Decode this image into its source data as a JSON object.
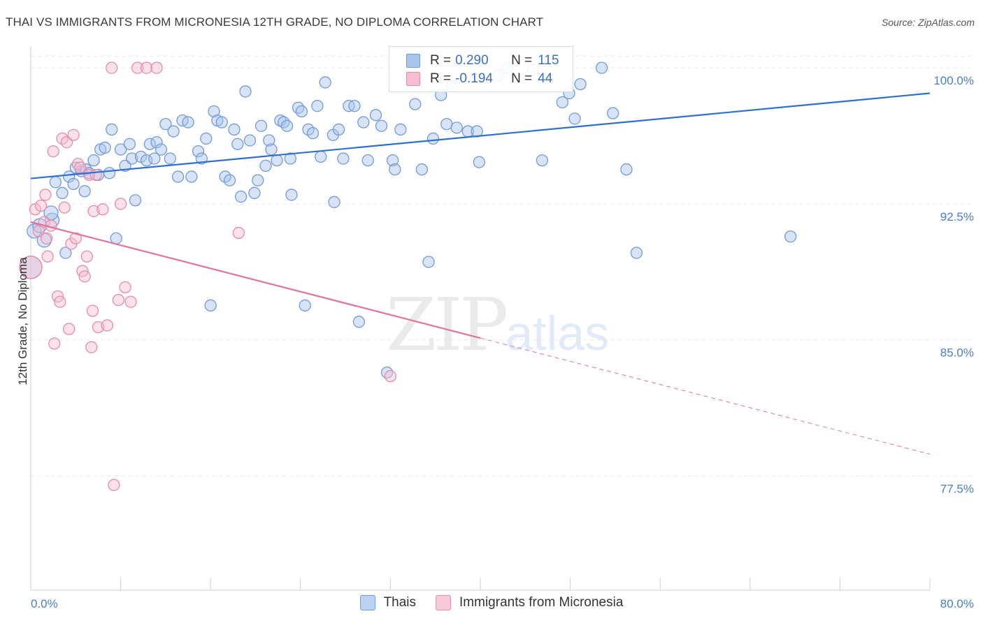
{
  "title": "THAI VS IMMIGRANTS FROM MICRONESIA 12TH GRADE, NO DIPLOMA CORRELATION CHART",
  "source": "Source: ZipAtlas.com",
  "watermark": {
    "zip": "ZIP",
    "atlas": "atlas"
  },
  "colors": {
    "blue_fill": "#a9c4ec",
    "blue_stroke": "#6f9bdb",
    "blue_line": "#2f6fce",
    "pink_fill": "#f6bccf",
    "pink_stroke": "#e68bab",
    "pink_line": "#e0739c",
    "tick_text": "#4a7ec8",
    "grid": "#e6e6e6"
  },
  "legend": {
    "rows": [
      {
        "r_label": "R =",
        "r_value": "0.290",
        "n_label": "N =",
        "n_value": "115"
      },
      {
        "r_label": "R =",
        "r_value": "-0.194",
        "n_label": "N =",
        "n_value": "44"
      }
    ]
  },
  "bottom_legend": [
    "Thais",
    "Immigrants from Micronesia"
  ],
  "chart_data": {
    "type": "scatter",
    "title": "THAI VS IMMIGRANTS FROM MICRONESIA 12TH GRADE, NO DIPLOMA CORRELATION CHART",
    "xlabel": "",
    "ylabel": "12th Grade, No Diploma",
    "xlim": [
      0,
      80
    ],
    "ylim": [
      71.2,
      101.2
    ],
    "x_tick_labels": [
      "0.0%",
      "80.0%"
    ],
    "y_ticks": [
      77.5,
      85.0,
      92.5,
      100.0
    ],
    "y_tick_labels": [
      "77.5%",
      "85.0%",
      "92.5%",
      "100.0%"
    ],
    "grid": "horizontal dashed",
    "legend_position": "top-center",
    "series": [
      {
        "name": "Thais",
        "color": "#6f9bdb",
        "trend": {
          "x": [
            0,
            80
          ],
          "y": [
            93.9,
            98.6
          ],
          "solid_until": 80
        },
        "points": [
          [
            0.0,
            89.0
          ],
          [
            0.3,
            91.0
          ],
          [
            0.8,
            91.3
          ],
          [
            1.2,
            90.5
          ],
          [
            1.9,
            91.6
          ],
          [
            1.8,
            92.0
          ],
          [
            2.2,
            93.7
          ],
          [
            2.8,
            93.1
          ],
          [
            3.1,
            89.8
          ],
          [
            3.4,
            94.0
          ],
          [
            3.8,
            93.6
          ],
          [
            4.0,
            94.5
          ],
          [
            4.5,
            94.3
          ],
          [
            4.9,
            94.4
          ],
          [
            4.8,
            93.2
          ],
          [
            5.2,
            94.2
          ],
          [
            5.6,
            94.9
          ],
          [
            6.0,
            94.1
          ],
          [
            6.2,
            95.5
          ],
          [
            6.6,
            95.6
          ],
          [
            7.0,
            94.2
          ],
          [
            7.2,
            96.6
          ],
          [
            7.6,
            90.6
          ],
          [
            8.0,
            95.5
          ],
          [
            8.4,
            94.6
          ],
          [
            8.8,
            95.8
          ],
          [
            9.0,
            95.0
          ],
          [
            9.3,
            92.7
          ],
          [
            9.8,
            95.1
          ],
          [
            10.3,
            94.9
          ],
          [
            10.6,
            95.8
          ],
          [
            11.0,
            95.0
          ],
          [
            11.2,
            95.9
          ],
          [
            11.6,
            95.5
          ],
          [
            12.0,
            96.9
          ],
          [
            12.4,
            95.0
          ],
          [
            12.7,
            96.5
          ],
          [
            13.1,
            94.0
          ],
          [
            13.5,
            97.1
          ],
          [
            14.0,
            97.0
          ],
          [
            14.3,
            94.0
          ],
          [
            14.9,
            95.4
          ],
          [
            15.2,
            95.0
          ],
          [
            15.6,
            96.1
          ],
          [
            16.0,
            86.9
          ],
          [
            16.3,
            97.6
          ],
          [
            16.6,
            97.1
          ],
          [
            17.0,
            97.0
          ],
          [
            17.3,
            94.0
          ],
          [
            17.7,
            93.8
          ],
          [
            18.1,
            96.6
          ],
          [
            18.4,
            95.8
          ],
          [
            18.7,
            92.9
          ],
          [
            19.1,
            98.7
          ],
          [
            19.5,
            96.0
          ],
          [
            19.9,
            93.1
          ],
          [
            20.2,
            93.8
          ],
          [
            20.5,
            96.8
          ],
          [
            20.9,
            94.6
          ],
          [
            21.2,
            96.0
          ],
          [
            21.4,
            95.5
          ],
          [
            21.9,
            94.9
          ],
          [
            22.2,
            97.1
          ],
          [
            22.5,
            97.0
          ],
          [
            22.8,
            96.8
          ],
          [
            23.1,
            95.0
          ],
          [
            23.2,
            93.0
          ],
          [
            23.8,
            97.8
          ],
          [
            24.1,
            97.6
          ],
          [
            24.4,
            86.9
          ],
          [
            24.7,
            96.6
          ],
          [
            25.1,
            96.4
          ],
          [
            25.5,
            97.9
          ],
          [
            25.8,
            95.1
          ],
          [
            26.2,
            99.2
          ],
          [
            26.9,
            96.3
          ],
          [
            27.0,
            92.6
          ],
          [
            27.4,
            96.6
          ],
          [
            27.8,
            95.0
          ],
          [
            28.3,
            97.9
          ],
          [
            28.8,
            97.9
          ],
          [
            29.2,
            86.0
          ],
          [
            29.6,
            97.0
          ],
          [
            30.0,
            94.9
          ],
          [
            30.7,
            97.4
          ],
          [
            31.2,
            96.8
          ],
          [
            31.7,
            83.2
          ],
          [
            32.2,
            94.9
          ],
          [
            32.4,
            94.4
          ],
          [
            32.9,
            96.6
          ],
          [
            33.6,
            99.5
          ],
          [
            34.2,
            98.0
          ],
          [
            34.8,
            94.4
          ],
          [
            35.4,
            89.3
          ],
          [
            35.8,
            96.1
          ],
          [
            36.5,
            98.5
          ],
          [
            37.0,
            96.9
          ],
          [
            37.5,
            99.0
          ],
          [
            37.9,
            96.7
          ],
          [
            38.9,
            96.5
          ],
          [
            39.7,
            96.5
          ],
          [
            39.9,
            94.8
          ],
          [
            41.6,
            99.6
          ],
          [
            42.4,
            100.0
          ],
          [
            44.7,
            99.9
          ],
          [
            45.5,
            94.9
          ],
          [
            47.3,
            98.1
          ],
          [
            47.9,
            98.6
          ],
          [
            48.4,
            97.2
          ],
          [
            48.9,
            99.1
          ],
          [
            50.8,
            100.0
          ],
          [
            51.8,
            97.5
          ],
          [
            53.0,
            94.4
          ],
          [
            53.9,
            89.8
          ],
          [
            67.6,
            90.7
          ]
        ]
      },
      {
        "name": "Immigrants from Micronesia",
        "color": "#e68bab",
        "trend": {
          "x": [
            0,
            80
          ],
          "y": [
            91.5,
            78.7
          ],
          "solid_until": 40
        },
        "points": [
          [
            0.0,
            89.0
          ],
          [
            0.4,
            92.2
          ],
          [
            0.7,
            91.0
          ],
          [
            0.9,
            92.4
          ],
          [
            1.2,
            91.5
          ],
          [
            1.3,
            93.0
          ],
          [
            1.4,
            90.6
          ],
          [
            1.5,
            89.6
          ],
          [
            1.8,
            91.3
          ],
          [
            2.0,
            95.4
          ],
          [
            2.1,
            84.8
          ],
          [
            2.4,
            87.4
          ],
          [
            2.6,
            87.1
          ],
          [
            2.8,
            96.1
          ],
          [
            3.0,
            92.3
          ],
          [
            3.2,
            95.9
          ],
          [
            3.4,
            85.6
          ],
          [
            3.6,
            90.3
          ],
          [
            3.8,
            96.3
          ],
          [
            4.0,
            90.6
          ],
          [
            4.2,
            94.7
          ],
          [
            4.4,
            94.5
          ],
          [
            4.6,
            88.8
          ],
          [
            4.8,
            88.5
          ],
          [
            5.0,
            89.6
          ],
          [
            5.2,
            94.1
          ],
          [
            5.4,
            84.6
          ],
          [
            5.5,
            86.6
          ],
          [
            5.6,
            92.1
          ],
          [
            5.8,
            94.1
          ],
          [
            6.0,
            85.7
          ],
          [
            6.4,
            92.2
          ],
          [
            6.8,
            85.8
          ],
          [
            7.2,
            100.0
          ],
          [
            7.4,
            77.0
          ],
          [
            7.8,
            87.2
          ],
          [
            8.0,
            92.5
          ],
          [
            8.4,
            87.9
          ],
          [
            8.9,
            87.1
          ],
          [
            9.5,
            100.0
          ],
          [
            10.3,
            100.0
          ],
          [
            11.2,
            100.0
          ],
          [
            18.5,
            90.9
          ],
          [
            32.0,
            83.0
          ]
        ]
      }
    ]
  }
}
